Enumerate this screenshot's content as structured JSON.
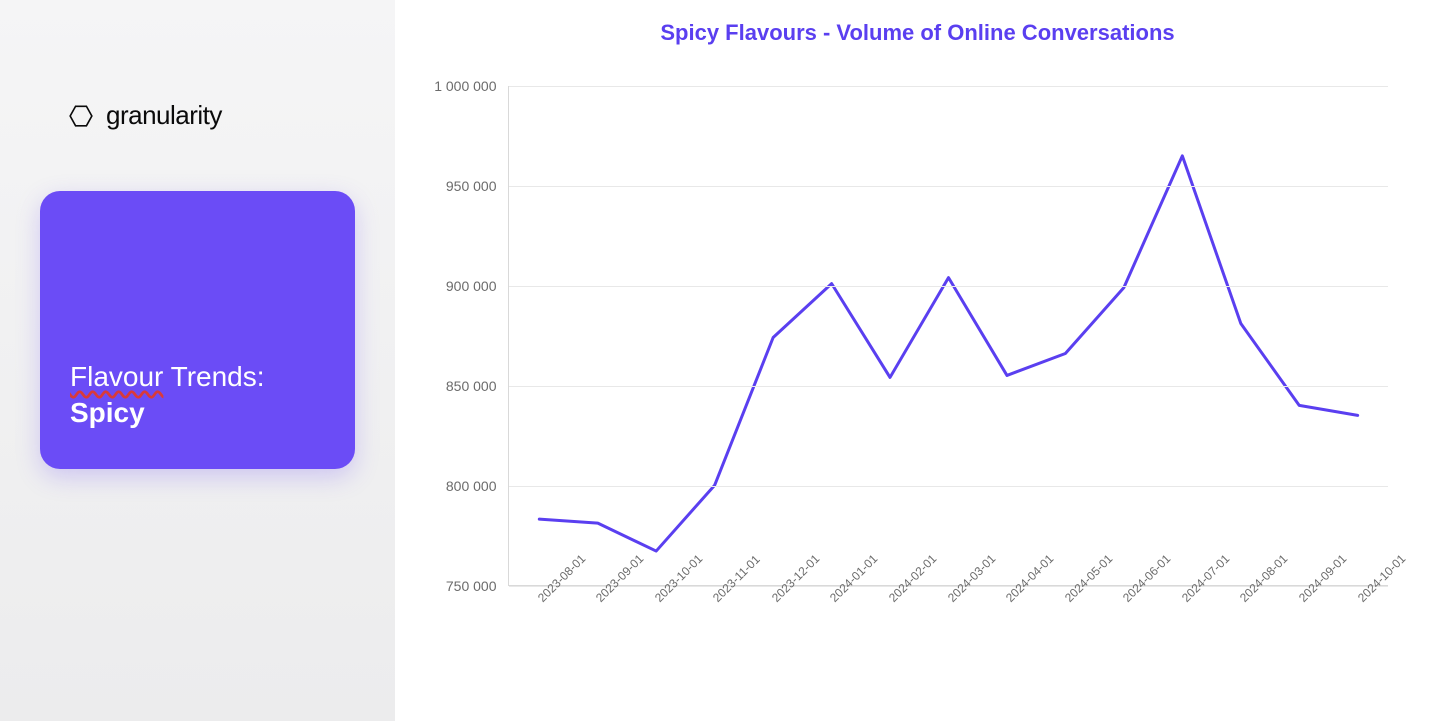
{
  "brand": {
    "name": "granularity"
  },
  "card": {
    "line1_underlined": "Flavour",
    "line1_rest": " Trends:",
    "line2": "Spicy",
    "bg_color": "#6b4cf6",
    "text_color": "#ffffff"
  },
  "chart": {
    "type": "line",
    "title": "Spicy Flavours - Volume of Online Conversations",
    "title_color": "#5a3ff0",
    "title_fontsize": 22,
    "line_color": "#5a3ff0",
    "line_width": 3,
    "background_color": "#ffffff",
    "grid_color": "#e8e8e8",
    "axis_color": "#d9d9d9",
    "tick_label_color": "#6b6b6b",
    "tick_fontsize": 14,
    "ylim": [
      750000,
      1000000
    ],
    "ytick_step": 50000,
    "yticks": [
      750000,
      800000,
      850000,
      900000,
      950000,
      1000000
    ],
    "x_labels": [
      "2023-08-01",
      "2023-09-01",
      "2023-10-01",
      "2023-11-01",
      "2023-12-01",
      "2024-01-01",
      "2024-02-01",
      "2024-03-01",
      "2024-04-01",
      "2024-05-01",
      "2024-06-01",
      "2024-07-01",
      "2024-08-01",
      "2024-09-01",
      "2024-10-01"
    ],
    "values": [
      783000,
      781000,
      767000,
      800000,
      874000,
      901000,
      854000,
      904000,
      855000,
      866000,
      899000,
      965000,
      881000,
      840000,
      835000
    ]
  }
}
